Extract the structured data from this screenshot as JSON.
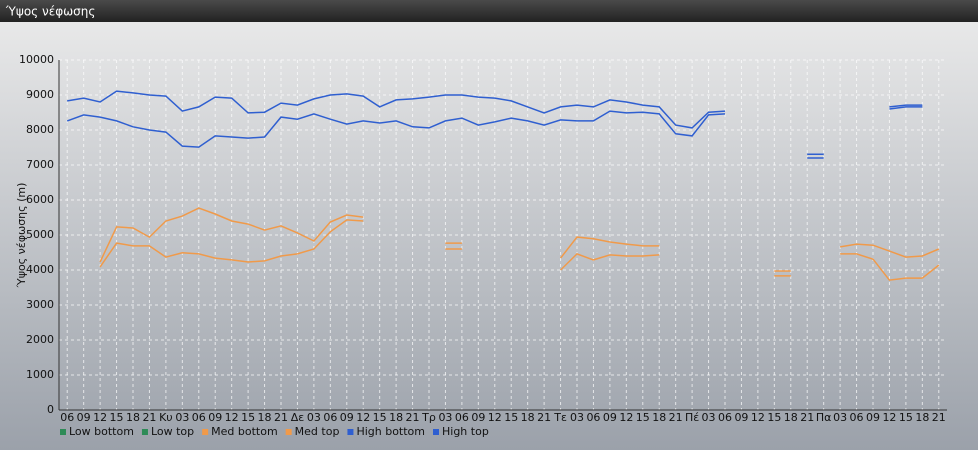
{
  "chart_data": {
    "type": "line",
    "title": "Ύψος νέφωσης",
    "y_label": "Ύψος νέφωσης (m)",
    "categories": [
      "06",
      "09",
      "12",
      "15",
      "18",
      "21",
      "Κυ",
      "03",
      "06",
      "09",
      "12",
      "15",
      "18",
      "21",
      "Δε",
      "03",
      "06",
      "09",
      "12",
      "15",
      "18",
      "21",
      "Τρ",
      "03",
      "06",
      "09",
      "12",
      "15",
      "18",
      "21",
      "Τε",
      "03",
      "06",
      "09",
      "12",
      "15",
      "18",
      "21",
      "Πέ",
      "03",
      "06",
      "09",
      "12",
      "15",
      "18",
      "21",
      "Πα",
      "03",
      "06",
      "09",
      "12",
      "15",
      "18",
      "21"
    ],
    "ylim": [
      0,
      10000
    ],
    "yticks": [
      0,
      1000,
      2000,
      3000,
      4000,
      5000,
      6000,
      7000,
      8000,
      9000,
      10000
    ],
    "grid": true,
    "legend": "bottom-left",
    "series": [
      {
        "name": "Low bottom",
        "color": "#2e8b57",
        "values": [
          null,
          null,
          null,
          null,
          null,
          null,
          null,
          null,
          null,
          null,
          null,
          null,
          null,
          null,
          null,
          null,
          null,
          null,
          null,
          null,
          null,
          null,
          null,
          null,
          null,
          null,
          null,
          null,
          null,
          null,
          null,
          null,
          null,
          null,
          null,
          null,
          null,
          null,
          null,
          null,
          null,
          null,
          null,
          null,
          null,
          null,
          null,
          null,
          null,
          null,
          null,
          null,
          null,
          null
        ]
      },
      {
        "name": "Low top",
        "color": "#2e8b57",
        "values": [
          null,
          null,
          null,
          null,
          null,
          null,
          null,
          null,
          null,
          null,
          null,
          null,
          null,
          null,
          null,
          null,
          null,
          null,
          null,
          null,
          null,
          null,
          null,
          null,
          null,
          null,
          null,
          null,
          null,
          null,
          null,
          null,
          null,
          null,
          null,
          null,
          null,
          null,
          null,
          null,
          null,
          null,
          null,
          null,
          null,
          null,
          null,
          null,
          null,
          null,
          null,
          null,
          null,
          null
        ]
      },
      {
        "name": "Med bottom",
        "color": "#f09a4a",
        "values": [
          null,
          null,
          4090,
          4770,
          4690,
          4690,
          4370,
          4490,
          4460,
          4340,
          4290,
          4230,
          4260,
          4400,
          4460,
          4600,
          5090,
          5430,
          5400,
          null,
          null,
          null,
          null,
          4600,
          4600,
          null,
          null,
          null,
          null,
          null,
          4000,
          4460,
          4290,
          4430,
          4400,
          4400,
          4430,
          null,
          null,
          null,
          null,
          null,
          null,
          3830,
          3830,
          null,
          null,
          4460,
          4460,
          4310,
          3710,
          3770,
          3770,
          4140
        ]
      },
      {
        "name": "Med top",
        "color": "#f09a4a",
        "values": [
          null,
          null,
          4230,
          5230,
          5200,
          4940,
          5400,
          5540,
          5770,
          5600,
          5400,
          5310,
          5140,
          5260,
          5060,
          4830,
          5370,
          5570,
          5510,
          null,
          null,
          null,
          null,
          4770,
          4770,
          null,
          null,
          null,
          null,
          null,
          4340,
          4940,
          4890,
          4800,
          4740,
          4690,
          4690,
          null,
          null,
          null,
          null,
          null,
          null,
          3970,
          3970,
          null,
          null,
          4660,
          4740,
          4710,
          4540,
          4370,
          4400,
          4600
        ]
      },
      {
        "name": "High bottom",
        "color": "#2f5fd0",
        "values": [
          8260,
          8430,
          8370,
          8260,
          8090,
          8000,
          7940,
          7540,
          7510,
          7830,
          7800,
          7770,
          7800,
          8370,
          8310,
          8460,
          8310,
          8170,
          8260,
          8200,
          8260,
          8090,
          8060,
          8260,
          8340,
          8140,
          8230,
          8340,
          8260,
          8140,
          8290,
          8260,
          8260,
          8540,
          8490,
          8510,
          8460,
          7890,
          7830,
          8430,
          8460,
          null,
          null,
          null,
          null,
          7200,
          7200,
          null,
          null,
          null,
          8600,
          8660,
          8660,
          null
        ]
      },
      {
        "name": "High top",
        "color": "#2f5fd0",
        "values": [
          8830,
          8910,
          8800,
          9110,
          9060,
          9000,
          8970,
          8540,
          8660,
          8940,
          8910,
          8490,
          8510,
          8770,
          8710,
          8890,
          9000,
          9030,
          8970,
          8660,
          8860,
          8890,
          8940,
          9000,
          9000,
          8940,
          8910,
          8830,
          8660,
          8490,
          8660,
          8710,
          8660,
          8860,
          8800,
          8710,
          8660,
          8140,
          8060,
          8510,
          8540,
          null,
          null,
          null,
          null,
          7310,
          7310,
          null,
          null,
          null,
          8660,
          8710,
          8710,
          null
        ]
      }
    ]
  }
}
